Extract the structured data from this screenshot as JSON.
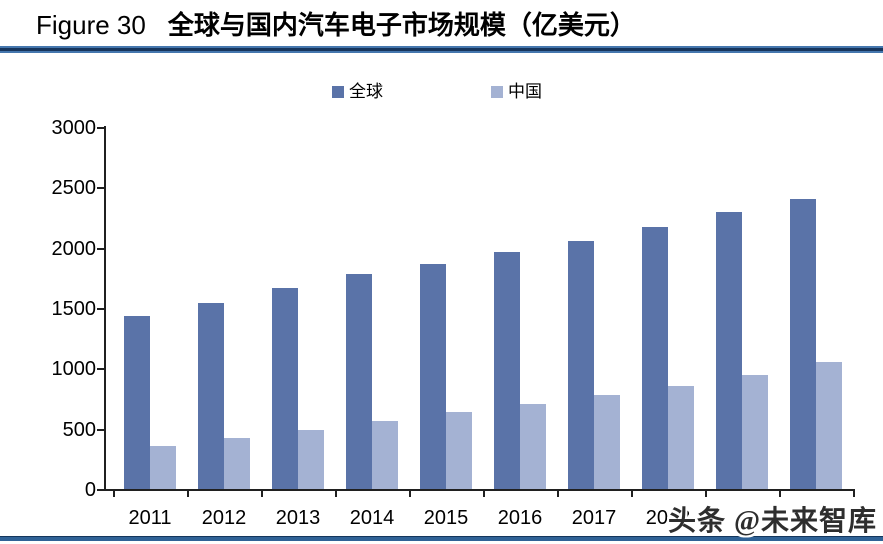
{
  "title": {
    "figure_label": "Figure 30",
    "text": "全球与国内汽车电子市场规模（亿美元）"
  },
  "watermark": "头条 @未来智库",
  "colors": {
    "global_bar": "#5A73A8",
    "china_bar": "#A4B2D3",
    "title_rule_core": "#17365D",
    "title_rule_edge": "#4577AE",
    "bottom_rule": "#2F6296",
    "axis": "#202020"
  },
  "chart_data": {
    "type": "bar",
    "title": "全球与国内汽车电子市场规模（亿美元）",
    "xlabel": "",
    "ylabel": "",
    "categories": [
      "2011",
      "2012",
      "2013",
      "2014",
      "2015",
      "2016",
      "2017",
      "2018",
      "",
      ""
    ],
    "visible_x_tick_labels": [
      "2011",
      "2012",
      "2013",
      "2014",
      "2015",
      "2016",
      "2017",
      "2018"
    ],
    "series": [
      {
        "key": "global",
        "name": "全球",
        "color": "#5A73A8",
        "values": [
          1440,
          1550,
          1670,
          1790,
          1870,
          1970,
          2060,
          2180,
          2300,
          2410
        ]
      },
      {
        "key": "china",
        "name": "中国",
        "color": "#A4B2D3",
        "values": [
          367,
          430,
          500,
          570,
          650,
          710,
          790,
          860,
          950,
          1060
        ]
      }
    ],
    "ylim": [
      0,
      3000
    ],
    "yticks": [
      0,
      500,
      1000,
      1500,
      2000,
      2500,
      3000
    ],
    "grid": false,
    "legend_position": "top"
  }
}
